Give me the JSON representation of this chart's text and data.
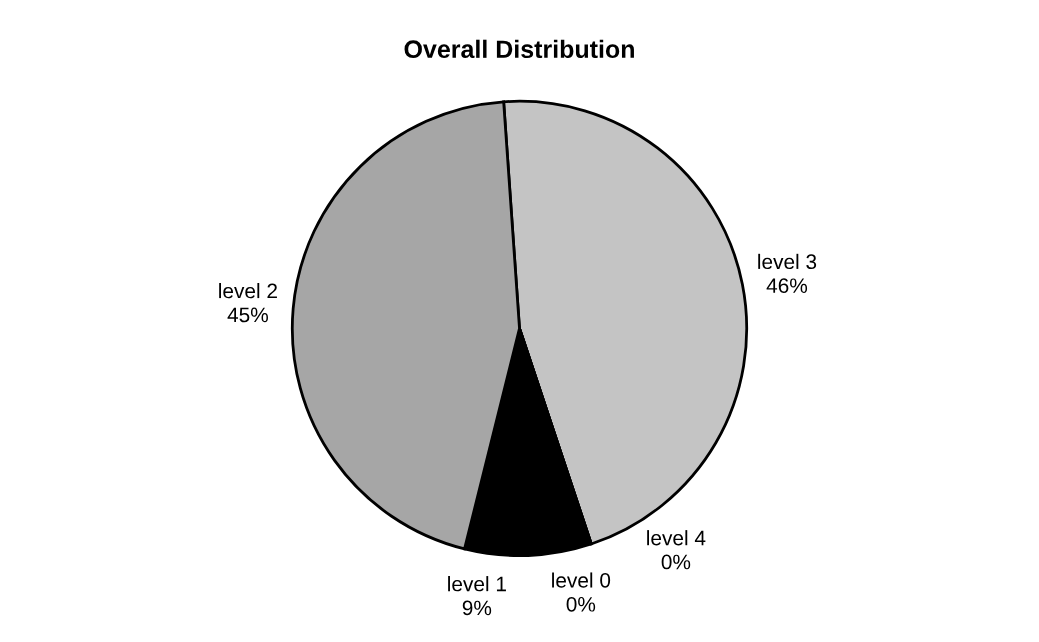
{
  "chart_data": {
    "type": "pie",
    "title": "Overall Distribution",
    "categories": [
      "level 3",
      "level 4",
      "level 0",
      "level 1",
      "level 2"
    ],
    "values": [
      46,
      0,
      0,
      9,
      45
    ],
    "value_labels": [
      "46%",
      "0%",
      "0%",
      "9%",
      "45%"
    ],
    "colors": [
      "#c4c4c4",
      "#ffffff",
      "#ffffff",
      "#000000",
      "#a6a6a6"
    ]
  }
}
